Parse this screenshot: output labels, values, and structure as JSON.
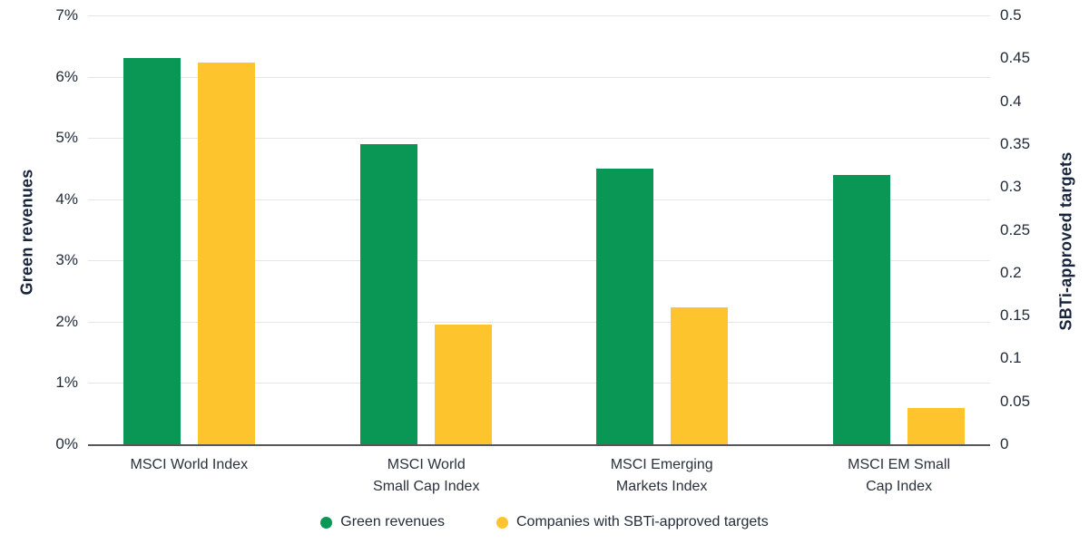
{
  "chart_data": {
    "type": "bar",
    "categories": [
      "MSCI World Index",
      "MSCI World\nSmall Cap Index",
      "MSCI Emerging\nMarkets Index",
      "MSCI EM Small\nCap Index"
    ],
    "series": [
      {
        "name": "Green revenues",
        "axis": "left",
        "color": "#0a9655",
        "values": [
          6.3,
          4.9,
          4.5,
          4.4
        ]
      },
      {
        "name": "Companies with SBTi-approved targets",
        "axis": "right",
        "color": "#fdc42d",
        "values": [
          0.445,
          0.14,
          0.16,
          0.042
        ]
      }
    ],
    "left_axis": {
      "label": "Green revenues",
      "min": 0,
      "max": 7,
      "ticks": [
        "7%",
        "6%",
        "5%",
        "4%",
        "3%",
        "2%",
        "1%",
        "0%"
      ]
    },
    "right_axis": {
      "label": "SBTi-approved targets",
      "min": 0,
      "max": 0.5,
      "ticks": [
        "0.5",
        "0.45",
        "0.4",
        "0.35",
        "0.3",
        "0.25",
        "0.2",
        "0.15",
        "0.1",
        "0.05",
        "0"
      ]
    },
    "grid": true,
    "legend_position": "bottom",
    "colors": {
      "green": "#0a9655",
      "yellow": "#fdc42d",
      "gridline": "#e5e5e5",
      "axis_line": "#56575b",
      "tick_text": "#232c3a",
      "category_text": "#2a313b",
      "title_text": "#17243b"
    }
  }
}
